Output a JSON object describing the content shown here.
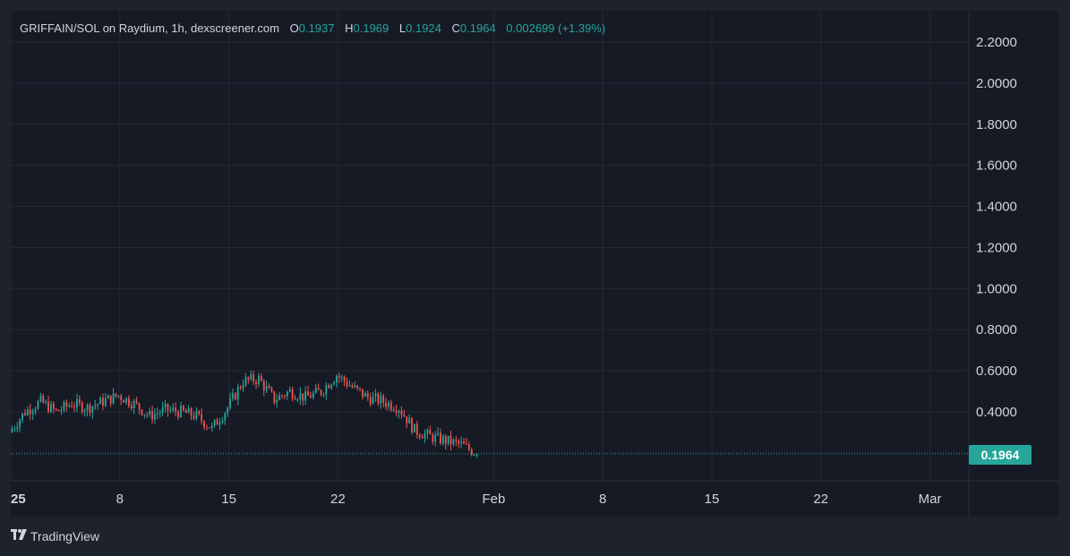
{
  "legend": {
    "title": "GRIFFAIN/SOL on Raydium, 1h, dexscreener.com",
    "o_label": "O",
    "o_value": "0.1937",
    "h_label": "H",
    "h_value": "0.1969",
    "l_label": "L",
    "l_value": "0.1924",
    "c_label": "C",
    "c_value": "0.1964",
    "change": "0.002699 (+1.39%)"
  },
  "last_price": "0.1964",
  "brand": {
    "name": "TradingView",
    "logo": "tradingview-logo"
  },
  "colors": {
    "background": "#161a25",
    "frame": "#1e222d",
    "grid": "#232834",
    "text": "#d1d4dc",
    "up": "#26a69a",
    "down": "#ef5350"
  },
  "chart_data": {
    "type": "candlestick",
    "title": "GRIFFAIN/SOL on Raydium, 1h, dexscreener.com",
    "y_axis": {
      "ticks": [
        "2.2000",
        "2.0000",
        "1.8000",
        "1.6000",
        "1.4000",
        "1.2000",
        "1.0000",
        "0.8000",
        "0.6000",
        "0.4000"
      ],
      "range": [
        0.1,
        2.3
      ]
    },
    "x_axis": {
      "ticks": [
        {
          "label": "2025",
          "date": "2025-01-01"
        },
        {
          "label": "8",
          "date": "2025-01-08"
        },
        {
          "label": "15",
          "date": "2025-01-15"
        },
        {
          "label": "22",
          "date": "2025-01-22"
        },
        {
          "label": "Feb",
          "date": "2025-02-01"
        },
        {
          "label": "8",
          "date": "2025-02-08"
        },
        {
          "label": "15",
          "date": "2025-02-15"
        },
        {
          "label": "22",
          "date": "2025-02-22"
        },
        {
          "label": "Mar",
          "date": "2025-03-01"
        }
      ]
    },
    "grid": true,
    "last_value": 0.1964,
    "close_series": [
      {
        "date": "2025-01-01",
        "close": 0.3
      },
      {
        "date": "2025-01-02",
        "close": 0.4
      },
      {
        "date": "2025-01-03",
        "close": 0.45
      },
      {
        "date": "2025-01-04",
        "close": 0.4
      },
      {
        "date": "2025-01-05",
        "close": 0.44
      },
      {
        "date": "2025-01-06",
        "close": 0.42
      },
      {
        "date": "2025-01-07",
        "close": 0.45
      },
      {
        "date": "2025-01-08",
        "close": 0.48
      },
      {
        "date": "2025-01-09",
        "close": 0.44
      },
      {
        "date": "2025-01-10",
        "close": 0.38
      },
      {
        "date": "2025-01-11",
        "close": 0.41
      },
      {
        "date": "2025-01-12",
        "close": 0.4
      },
      {
        "date": "2025-01-13",
        "close": 0.38
      },
      {
        "date": "2025-01-14",
        "close": 0.32
      },
      {
        "date": "2025-01-15",
        "close": 0.42
      },
      {
        "date": "2025-01-16",
        "close": 0.55
      },
      {
        "date": "2025-01-17",
        "close": 0.56
      },
      {
        "date": "2025-01-18",
        "close": 0.46
      },
      {
        "date": "2025-01-19",
        "close": 0.5
      },
      {
        "date": "2025-01-20",
        "close": 0.47
      },
      {
        "date": "2025-01-21",
        "close": 0.5
      },
      {
        "date": "2025-01-22",
        "close": 0.58
      },
      {
        "date": "2025-01-23",
        "close": 0.52
      },
      {
        "date": "2025-01-24",
        "close": 0.47
      },
      {
        "date": "2025-01-25",
        "close": 0.45
      },
      {
        "date": "2025-01-26",
        "close": 0.42
      },
      {
        "date": "2025-01-27",
        "close": 0.31
      },
      {
        "date": "2025-01-28",
        "close": 0.28
      },
      {
        "date": "2025-01-29",
        "close": 0.26
      },
      {
        "date": "2025-01-30",
        "close": 0.24
      },
      {
        "date": "2025-01-31",
        "close": 0.1964
      }
    ]
  }
}
